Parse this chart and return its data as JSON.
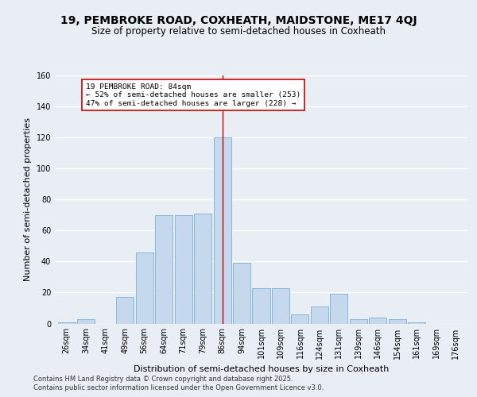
{
  "title1": "19, PEMBROKE ROAD, COXHEATH, MAIDSTONE, ME17 4QJ",
  "title2": "Size of property relative to semi-detached houses in Coxheath",
  "xlabel": "Distribution of semi-detached houses by size in Coxheath",
  "ylabel": "Number of semi-detached properties",
  "categories": [
    "26sqm",
    "34sqm",
    "41sqm",
    "49sqm",
    "56sqm",
    "64sqm",
    "71sqm",
    "79sqm",
    "86sqm",
    "94sqm",
    "101sqm",
    "109sqm",
    "116sqm",
    "124sqm",
    "131sqm",
    "139sqm",
    "146sqm",
    "154sqm",
    "161sqm",
    "169sqm",
    "176sqm"
  ],
  "values": [
    1,
    3,
    0,
    17,
    46,
    70,
    70,
    71,
    120,
    39,
    23,
    23,
    6,
    11,
    19,
    3,
    4,
    3,
    1,
    0,
    0
  ],
  "bar_color": "#c5d8ed",
  "bar_edge_color": "#7aafd4",
  "highlight_index": 8,
  "highlight_line_color": "#cc0000",
  "annotation_text": "19 PEMBROKE ROAD: 84sqm\n← 52% of semi-detached houses are smaller (253)\n47% of semi-detached houses are larger (228) →",
  "annotation_edge_color": "#cc0000",
  "ylim": [
    0,
    160
  ],
  "yticks": [
    0,
    20,
    40,
    60,
    80,
    100,
    120,
    140,
    160
  ],
  "footer_line1": "Contains HM Land Registry data © Crown copyright and database right 2025.",
  "footer_line2": "Contains public sector information licensed under the Open Government Licence v3.0.",
  "background_color": "#e8eef4",
  "plot_bg_color": "#e8eef4",
  "grid_color": "#ffffff",
  "title1_fontsize": 10,
  "title2_fontsize": 8.5,
  "axis_label_fontsize": 8,
  "tick_fontsize": 7,
  "footer_fontsize": 6
}
